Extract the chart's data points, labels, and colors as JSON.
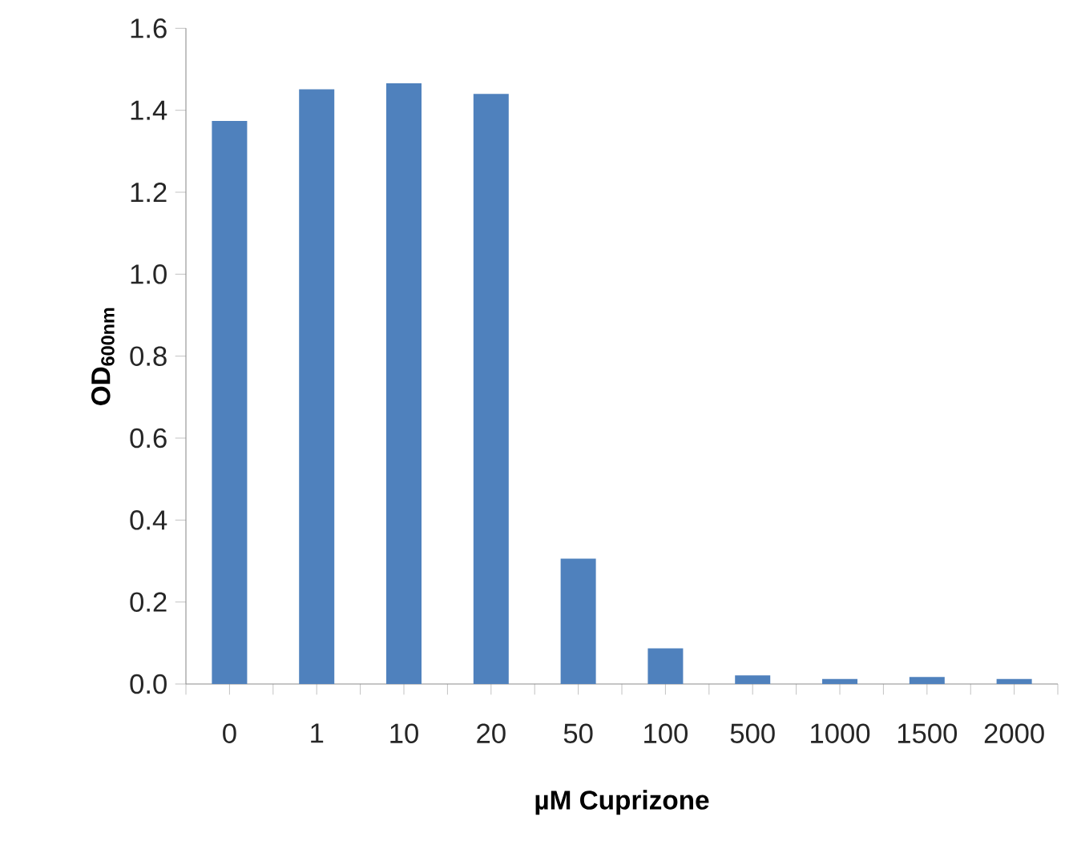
{
  "chart_data": {
    "type": "bar",
    "categories": [
      "0",
      "1",
      "10",
      "20",
      "50",
      "100",
      "500",
      "1000",
      "1500",
      "2000"
    ],
    "values": [
      1.374,
      1.451,
      1.466,
      1.44,
      0.306,
      0.087,
      0.021,
      0.012,
      0.017,
      0.012
    ],
    "color": "#4f81bd",
    "xlabel": "µM Cuprizone",
    "ylabel": "OD$_{600nm}$",
    "ylim": [
      0,
      1.6
    ],
    "yticks": [
      {
        "value": 0,
        "label": "0.0"
      },
      {
        "value": 0.2,
        "label": "0.2"
      },
      {
        "value": 0.4,
        "label": "0.4"
      },
      {
        "value": 0.6,
        "label": "0.6"
      },
      {
        "value": 0.8,
        "label": "0.8"
      },
      {
        "value": 1.0,
        "label": "1.0"
      },
      {
        "value": 1.2,
        "label": "1.2"
      },
      {
        "value": 1.4,
        "label": "1.4"
      },
      {
        "value": 1.6,
        "label": "1.6"
      }
    ],
    "grid": false
  }
}
